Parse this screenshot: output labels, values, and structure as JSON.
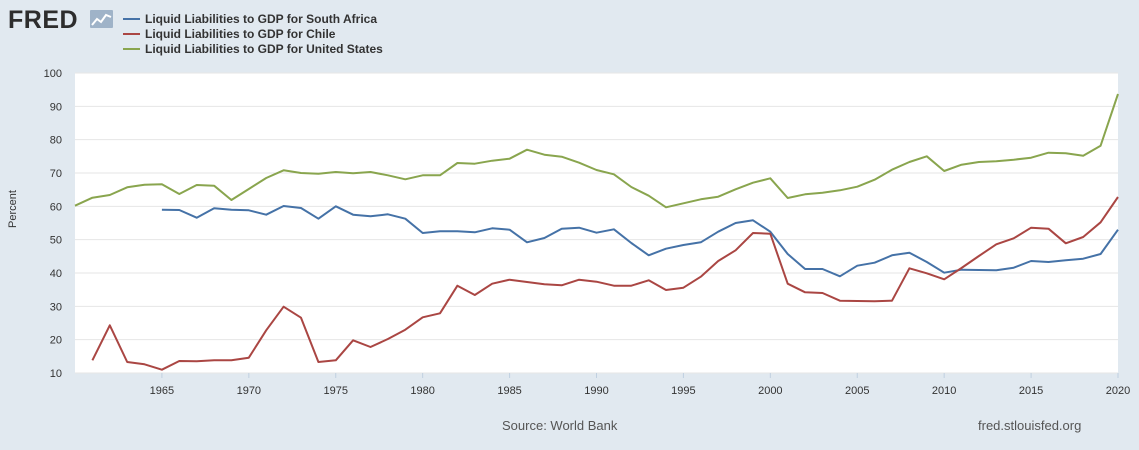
{
  "header": {
    "logo_text": "FRED",
    "logo_icon": "line-chart-icon"
  },
  "legend": [
    {
      "label": "Liquid Liabilities to GDP for South Africa",
      "color": "#4572a7"
    },
    {
      "label": "Liquid Liabilities to GDP for Chile",
      "color": "#aa4643"
    },
    {
      "label": "Liquid Liabilities to GDP for United States",
      "color": "#89a54e"
    }
  ],
  "footer": {
    "source": "Source: World Bank",
    "site": "fred.stlouisfed.org"
  },
  "chart_data": {
    "type": "line",
    "title": "",
    "xlabel": "",
    "ylabel": "Percent",
    "xlim": [
      1960,
      2020
    ],
    "ylim": [
      10,
      100
    ],
    "yticks": [
      10,
      20,
      30,
      40,
      50,
      60,
      70,
      80,
      90,
      100
    ],
    "xticks": [
      1965,
      1970,
      1975,
      1980,
      1985,
      1990,
      1995,
      2000,
      2005,
      2010,
      2015,
      2020
    ],
    "grid": true,
    "legend_position": "top-left",
    "series": [
      {
        "name": "Liquid Liabilities to GDP for South Africa",
        "color": "#4572a7",
        "x": [
          1965,
          1966,
          1967,
          1968,
          1969,
          1970,
          1971,
          1972,
          1973,
          1974,
          1975,
          1976,
          1977,
          1978,
          1979,
          1980,
          1981,
          1982,
          1983,
          1984,
          1985,
          1986,
          1987,
          1988,
          1989,
          1990,
          1991,
          1992,
          1993,
          1994,
          1995,
          1996,
          1997,
          1998,
          1999,
          2000,
          2001,
          2002,
          2003,
          2004,
          2005,
          2006,
          2007,
          2008,
          2009,
          2010,
          2011,
          2012,
          2013,
          2014,
          2015,
          2016,
          2017,
          2018,
          2019,
          2020
        ],
        "values": [
          59,
          58.9,
          56.6,
          59.4,
          59,
          58.8,
          57.5,
          60.1,
          59.5,
          56.3,
          60,
          57.5,
          57,
          57.6,
          56.3,
          52,
          52.5,
          52.5,
          52.2,
          53.4,
          53,
          49.2,
          50.5,
          53.3,
          53.6,
          52.1,
          53.1,
          49,
          45.3,
          47.3,
          48.4,
          49.2,
          52.4,
          55,
          55.8,
          52.4,
          45.7,
          41.2,
          41.2,
          39,
          42.2,
          43.1,
          45.3,
          46.1,
          43.3,
          40.1,
          41,
          40.9,
          40.8,
          41.6,
          43.6,
          43.3,
          43.8,
          44.3,
          45.7,
          53
        ]
      },
      {
        "name": "Liquid Liabilities to GDP for Chile",
        "color": "#aa4643",
        "x": [
          1961,
          1962,
          1963,
          1964,
          1965,
          1966,
          1967,
          1968,
          1969,
          1970,
          1971,
          1972,
          1973,
          1974,
          1975,
          1976,
          1977,
          1978,
          1979,
          1980,
          1981,
          1982,
          1983,
          1984,
          1985,
          1986,
          1987,
          1988,
          1989,
          1990,
          1991,
          1992,
          1993,
          1994,
          1995,
          1996,
          1997,
          1998,
          1999,
          2000,
          2001,
          2002,
          2003,
          2004,
          2005,
          2006,
          2007,
          2008,
          2009,
          2010,
          2011,
          2012,
          2013,
          2014,
          2015,
          2016,
          2017,
          2018,
          2019,
          2020
        ],
        "values": [
          13.8,
          24.3,
          13.3,
          12.6,
          11,
          13.6,
          13.5,
          13.8,
          13.8,
          14.6,
          22.8,
          29.9,
          26.6,
          13.3,
          13.8,
          19.8,
          17.8,
          20.2,
          23,
          26.7,
          27.9,
          36.2,
          33.4,
          36.8,
          38,
          37.3,
          36.6,
          36.3,
          38,
          37.4,
          36.2,
          36.2,
          37.8,
          34.9,
          35.6,
          38.9,
          43.6,
          46.8,
          52,
          51.8,
          36.8,
          34.2,
          34,
          31.7,
          31.6,
          31.5,
          31.7,
          41.4,
          39.9,
          38.1,
          41.5,
          45.1,
          48.6,
          50.4,
          53.6,
          53.3,
          48.9,
          50.8,
          55.2,
          62.8
        ]
      },
      {
        "name": "Liquid Liabilities to GDP for United States",
        "color": "#89a54e",
        "x": [
          1960,
          1961,
          1962,
          1963,
          1964,
          1965,
          1966,
          1967,
          1968,
          1969,
          1970,
          1971,
          1972,
          1973,
          1974,
          1975,
          1976,
          1977,
          1978,
          1979,
          1980,
          1981,
          1982,
          1983,
          1984,
          1985,
          1986,
          1987,
          1988,
          1989,
          1990,
          1991,
          1992,
          1993,
          1994,
          1995,
          1996,
          1997,
          1998,
          1999,
          2000,
          2001,
          2002,
          2003,
          2004,
          2005,
          2006,
          2007,
          2008,
          2009,
          2010,
          2011,
          2012,
          2013,
          2014,
          2015,
          2016,
          2017,
          2018,
          2019,
          2020
        ],
        "values": [
          60.2,
          62.6,
          63.4,
          65.7,
          66.5,
          66.6,
          63.7,
          66.4,
          66.2,
          61.9,
          65.2,
          68.5,
          70.8,
          70,
          69.8,
          70.3,
          69.9,
          70.3,
          69.3,
          68.1,
          69.3,
          69.3,
          73,
          72.8,
          73.7,
          74.3,
          77,
          75.5,
          74.9,
          73.1,
          70.9,
          69.6,
          65.8,
          63.2,
          59.7,
          60.9,
          62.1,
          62.9,
          65.1,
          67.1,
          68.4,
          62.5,
          63.6,
          64.1,
          64.8,
          65.9,
          68,
          71,
          73.3,
          75,
          70.6,
          72.5,
          73.3,
          73.5,
          74,
          74.6,
          76.1,
          75.9,
          75.2,
          78.2,
          93.7
        ]
      }
    ]
  }
}
